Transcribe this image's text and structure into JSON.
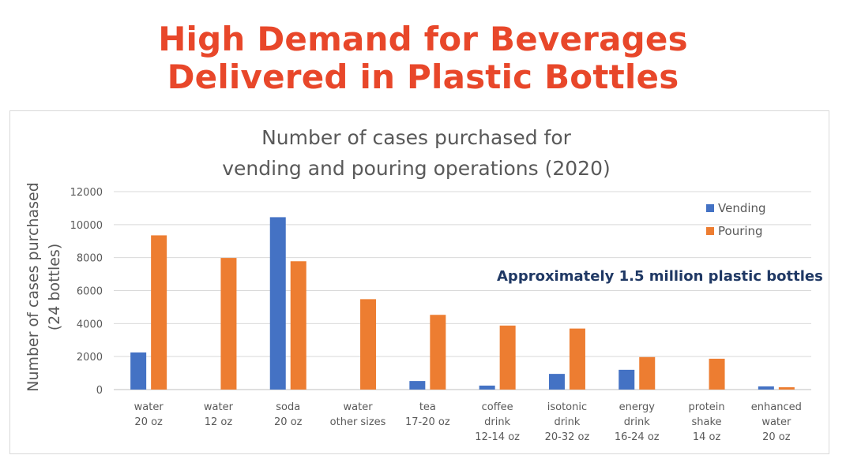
{
  "slide": {
    "title_line1": "High Demand for Beverages",
    "title_line2": "Delivered in Plastic Bottles",
    "title_color": "#e8472a"
  },
  "chart_data": {
    "type": "bar",
    "title_lines": [
      "Number of cases purchased for",
      "vending and pouring operations (2020)"
    ],
    "ylabel_lines": [
      "Number of cases purchased",
      "(24 bottles)"
    ],
    "xlabel": "",
    "ylim": [
      0,
      12000
    ],
    "yticks": [
      0,
      2000,
      4000,
      6000,
      8000,
      10000,
      12000
    ],
    "grid": true,
    "legend_position": "top-right",
    "categories": [
      [
        "water",
        "20 oz"
      ],
      [
        "water",
        "12 oz"
      ],
      [
        "soda",
        "20 oz"
      ],
      [
        "water",
        "other sizes"
      ],
      [
        "tea",
        "17-20 oz"
      ],
      [
        "coffee",
        "drink",
        "12-14 oz"
      ],
      [
        "isotonic",
        "drink",
        "20-32 oz"
      ],
      [
        "energy",
        "drink",
        "16-24 oz"
      ],
      [
        "protein",
        "shake",
        "14 oz"
      ],
      [
        "enhanced",
        "water",
        "20 oz"
      ]
    ],
    "series": [
      {
        "name": "Vending",
        "color": "#4472c4",
        "values": [
          2250,
          0,
          10450,
          0,
          520,
          240,
          950,
          1200,
          0,
          190
        ]
      },
      {
        "name": "Pouring",
        "color": "#ed7d31",
        "values": [
          9350,
          7980,
          7780,
          5480,
          4530,
          3880,
          3700,
          1970,
          1870,
          140
        ]
      }
    ],
    "annotation": "Approximately 1.5 million plastic bottles"
  }
}
